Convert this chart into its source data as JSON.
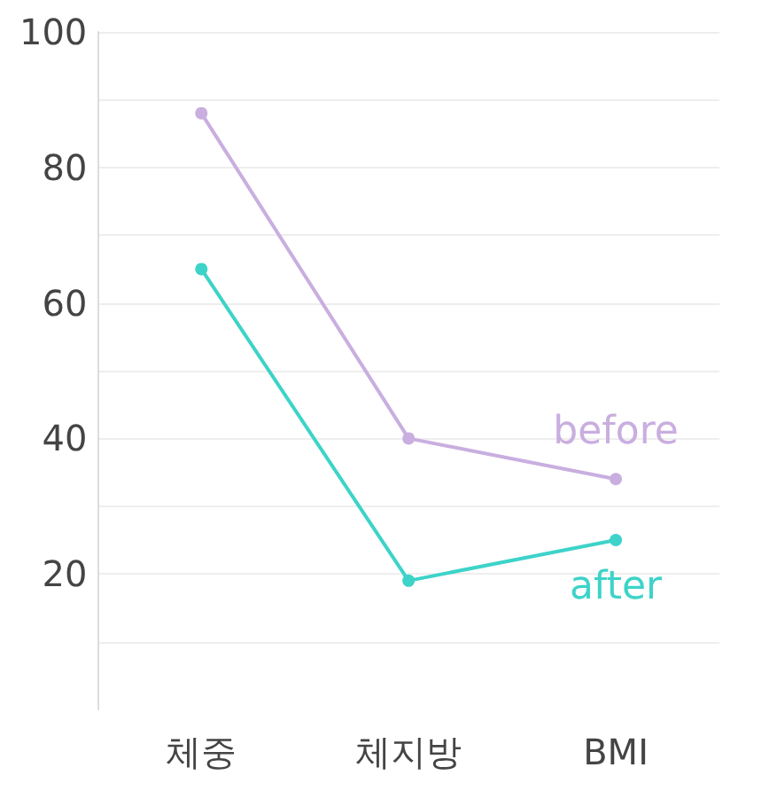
{
  "chart_data": {
    "type": "line",
    "categories": [
      "체중",
      "체지방",
      "BMI"
    ],
    "series": [
      {
        "name": "before",
        "color": "#c9aee0",
        "values": [
          88,
          40,
          34
        ]
      },
      {
        "name": "after",
        "color": "#3dd3c9",
        "values": [
          65,
          19,
          25
        ]
      }
    ],
    "ylim": [
      0,
      100
    ],
    "yticks": [
      {
        "value": 10,
        "label": null
      },
      20,
      {
        "value": 30,
        "label": null
      },
      40,
      {
        "value": 50,
        "label": null
      },
      60,
      {
        "value": 70,
        "label": null
      },
      80,
      {
        "value": 90,
        "label": null
      },
      100
    ],
    "grid": "y",
    "marker": "circle",
    "line_style": "solid"
  }
}
